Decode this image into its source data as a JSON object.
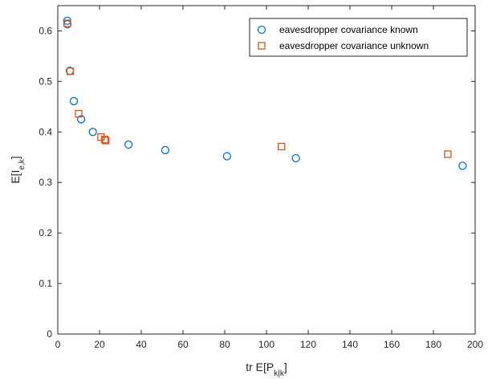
{
  "chart_data": {
    "type": "scatter",
    "xlabel": {
      "main": "tr E[P",
      "sub": "k|k",
      "tail": "]"
    },
    "ylabel": {
      "main": "E[I",
      "sub": "e,k",
      "tail": "]"
    },
    "xlim": [
      0,
      200
    ],
    "ylim": [
      0,
      0.65
    ],
    "xticks": [
      0,
      20,
      40,
      60,
      80,
      100,
      120,
      140,
      160,
      180,
      200
    ],
    "yticks": [
      0,
      0.1,
      0.2,
      0.3,
      0.4,
      0.5,
      0.6
    ],
    "xtick_labels": [
      "0",
      "20",
      "40",
      "60",
      "80",
      "100",
      "120",
      "140",
      "160",
      "180",
      "200"
    ],
    "ytick_labels": [
      "0",
      "0.1",
      "0.2",
      "0.3",
      "0.4",
      "0.5",
      "0.6"
    ],
    "grid": false,
    "legend_position": "top-right",
    "series": [
      {
        "name": "eavesdropper covariance known",
        "marker": "circle",
        "color": "#0072BD",
        "points": [
          [
            4.5,
            0.62
          ],
          [
            4.6,
            0.613
          ],
          [
            5.8,
            0.521
          ],
          [
            7.7,
            0.461
          ],
          [
            11.2,
            0.425
          ],
          [
            16.8,
            0.4
          ],
          [
            33.9,
            0.375
          ],
          [
            51.5,
            0.364
          ],
          [
            81.1,
            0.352
          ],
          [
            114.1,
            0.348
          ],
          [
            194.0,
            0.333
          ]
        ]
      },
      {
        "name": "eavesdropper covariance unknown",
        "marker": "square",
        "color": "#D95319",
        "points": [
          [
            4.6,
            0.615
          ],
          [
            6.0,
            0.52
          ],
          [
            10.0,
            0.436
          ],
          [
            20.7,
            0.39
          ],
          [
            22.5,
            0.385
          ],
          [
            23.0,
            0.383
          ],
          [
            107.2,
            0.371
          ],
          [
            186.9,
            0.356
          ]
        ]
      }
    ]
  }
}
